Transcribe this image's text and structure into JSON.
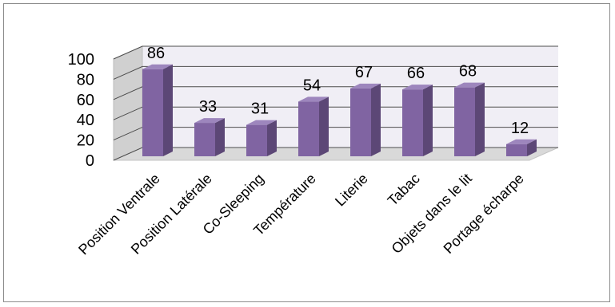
{
  "chart_data": {
    "type": "bar",
    "style": "3d-column",
    "categories": [
      "Position Ventrale",
      "Position Latérale",
      "Co-Sleeping",
      "Température",
      "Literie",
      "Tabac",
      "Objets dans le lit",
      "Portage écharpe"
    ],
    "values": [
      86,
      33,
      31,
      54,
      67,
      66,
      68,
      12
    ],
    "ylim": [
      0,
      100
    ],
    "yticks": [
      "0",
      "20",
      "40",
      "60",
      "80",
      "100"
    ],
    "grid": true,
    "legend": "none",
    "title": "",
    "xlabel": "",
    "ylabel": ""
  },
  "colors": {
    "bar_front": "#8064a2",
    "bar_side": "#5c4776",
    "bar_top": "#9d86bd",
    "wall": "#f0eef5",
    "floor": "#d9d9d9",
    "grid": "#4d4d4d"
  }
}
